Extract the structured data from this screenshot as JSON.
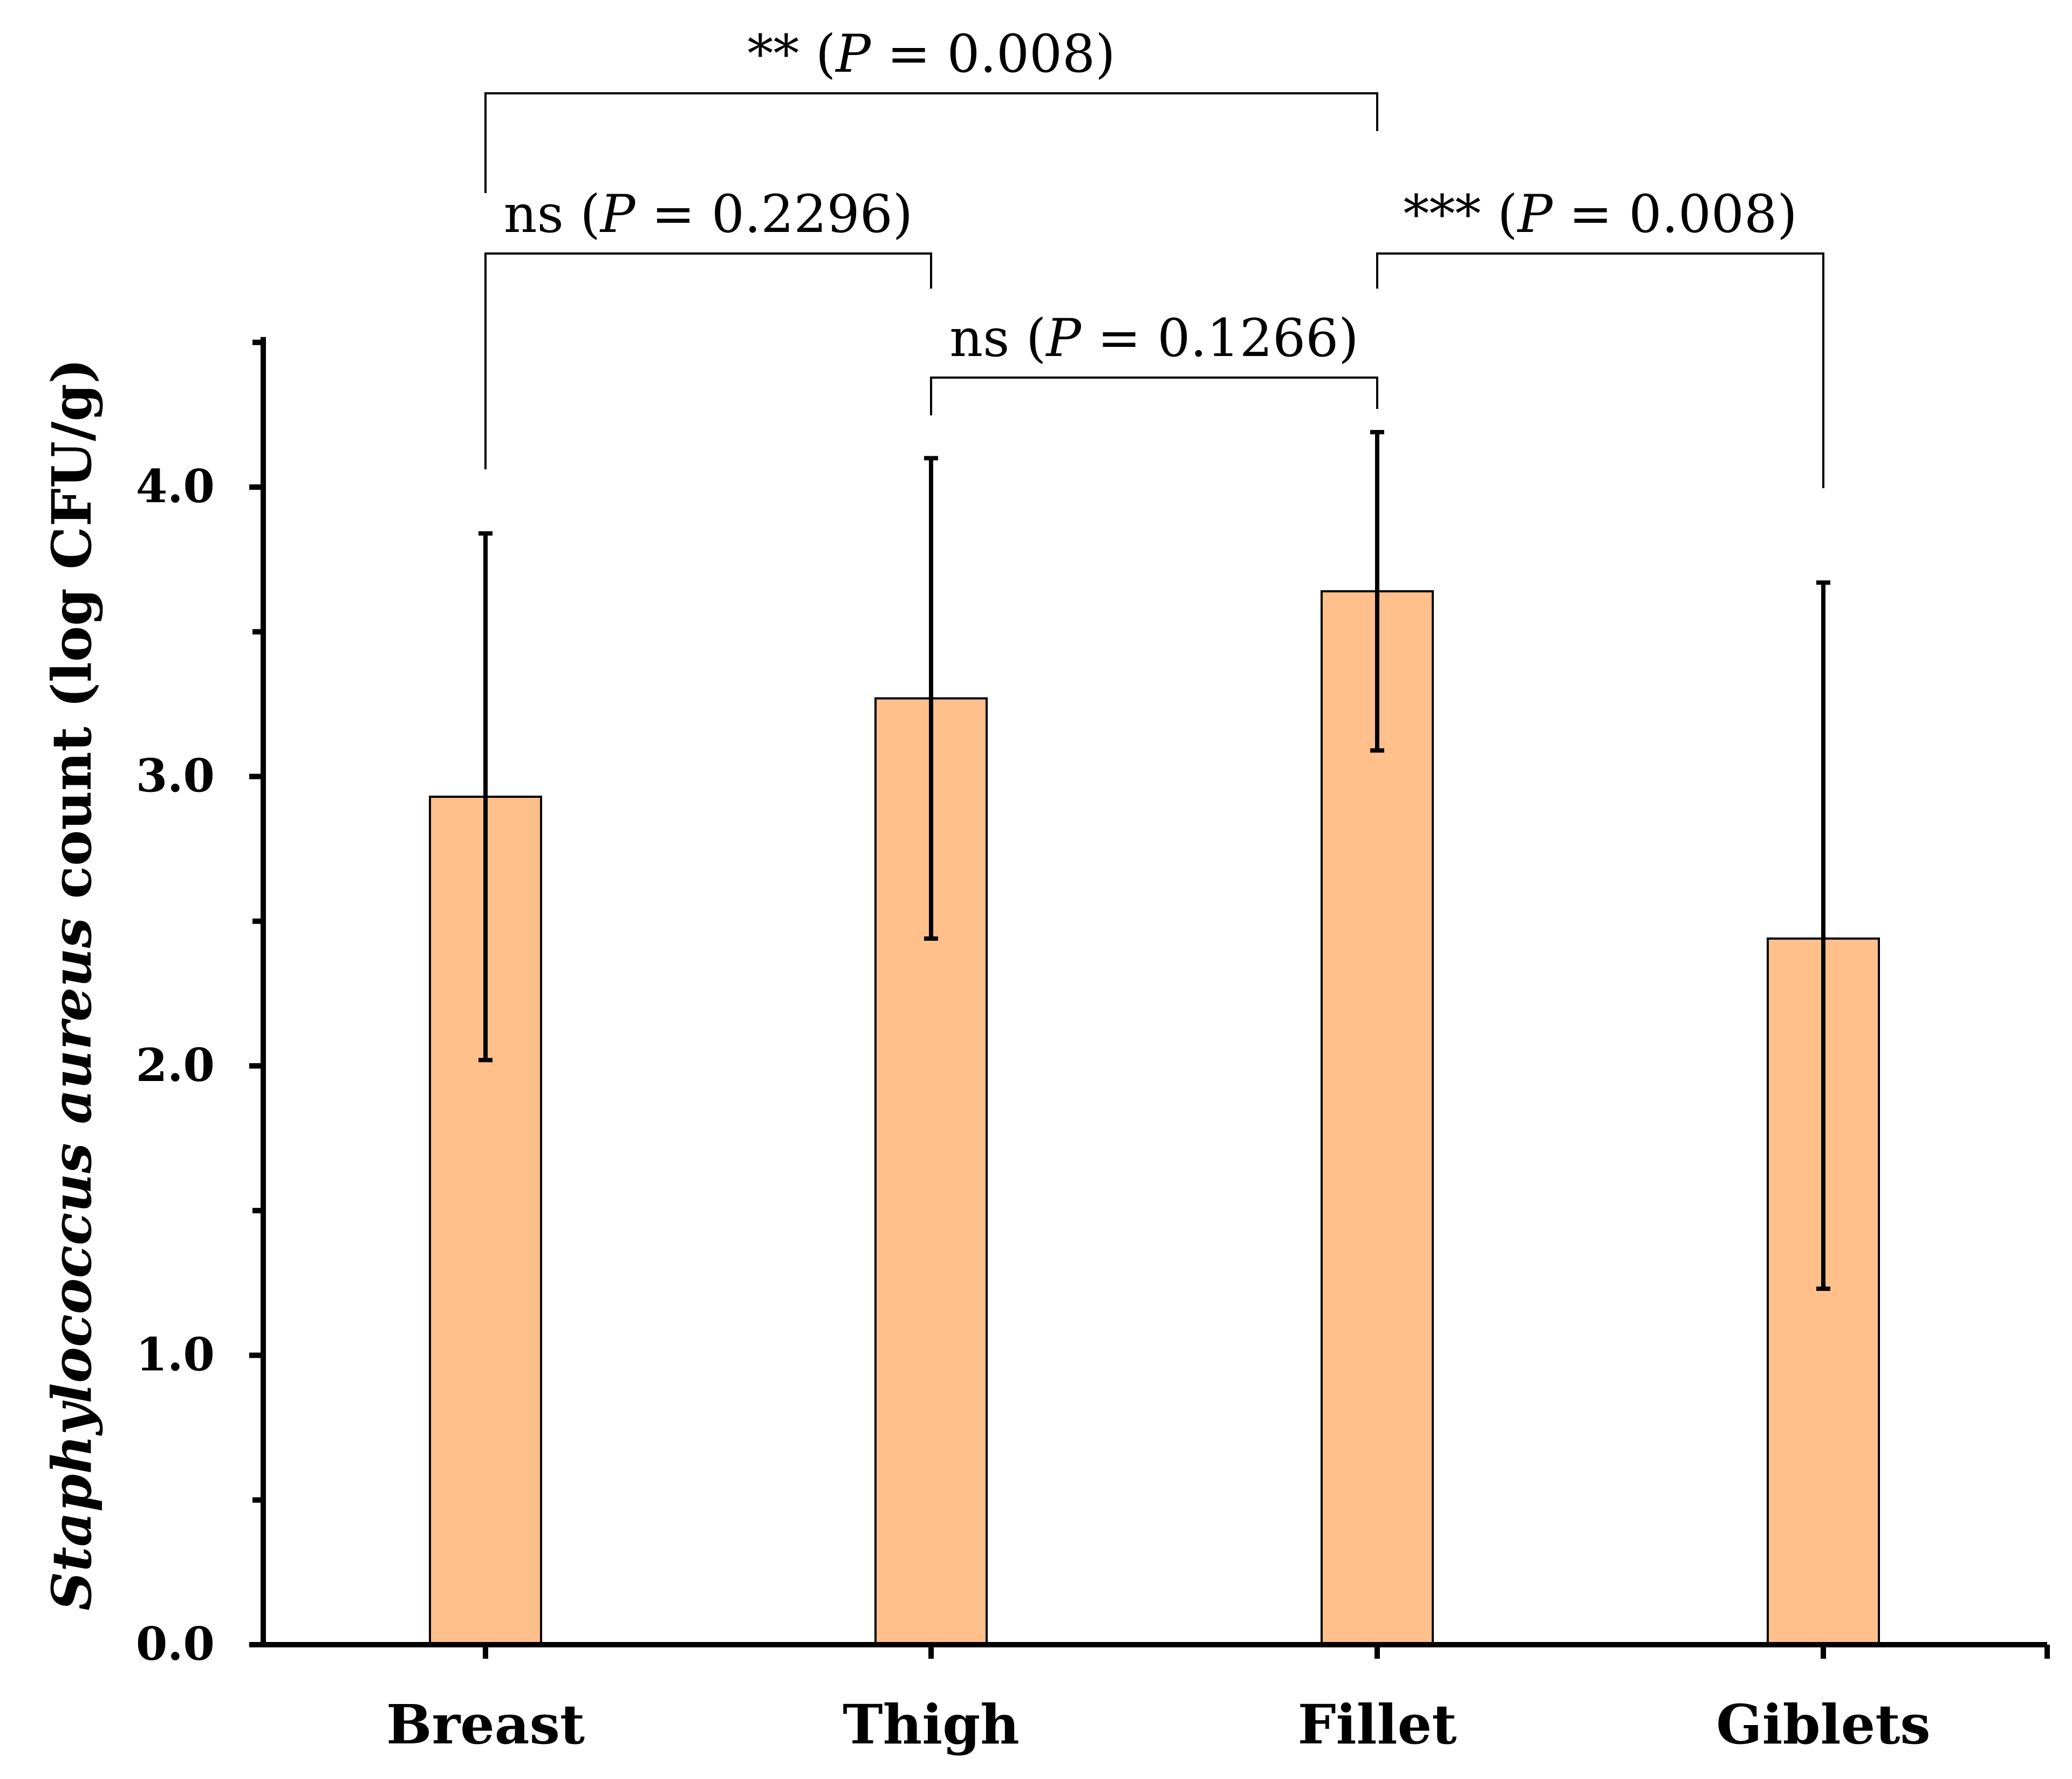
{
  "chart_data": {
    "type": "bar",
    "title": "",
    "xlabel": "",
    "ylabel": {
      "italic_part": "Staphylococcus aureus",
      "rest": " count (log CFU/g)"
    },
    "categories": [
      "Breast",
      "Thigh",
      "Fillet",
      "Giblets"
    ],
    "values": [
      2.93,
      3.27,
      3.64,
      2.44
    ],
    "error_low": [
      2.02,
      2.44,
      3.09,
      1.23
    ],
    "error_high": [
      3.84,
      4.1,
      4.19,
      3.67
    ],
    "ylim": [
      0,
      4.5
    ],
    "y_ticks": [
      {
        "value": 0,
        "label": "0.0"
      },
      {
        "value": 1,
        "label": "1.0"
      },
      {
        "value": 2,
        "label": "2.0"
      },
      {
        "value": 3,
        "label": "3.0"
      },
      {
        "value": 4,
        "label": "4.0"
      }
    ],
    "y_minor_ticks": [
      0.5,
      1.5,
      2.5,
      3.5,
      4.5
    ],
    "bar_color": "#FFC08C",
    "grid": false,
    "annotations": [
      {
        "from": 0,
        "to": 2,
        "sig": "**",
        "p": "0.008",
        "level": 0
      },
      {
        "from": 0,
        "to": 1,
        "sig": "ns",
        "p": "0.2296",
        "level": 1
      },
      {
        "from": 2,
        "to": 3,
        "sig": "***",
        "p": "0.008",
        "level": 1
      },
      {
        "from": 1,
        "to": 2,
        "sig": "ns",
        "p": "0.1266",
        "level": 2
      }
    ],
    "p_symbol": "P"
  }
}
